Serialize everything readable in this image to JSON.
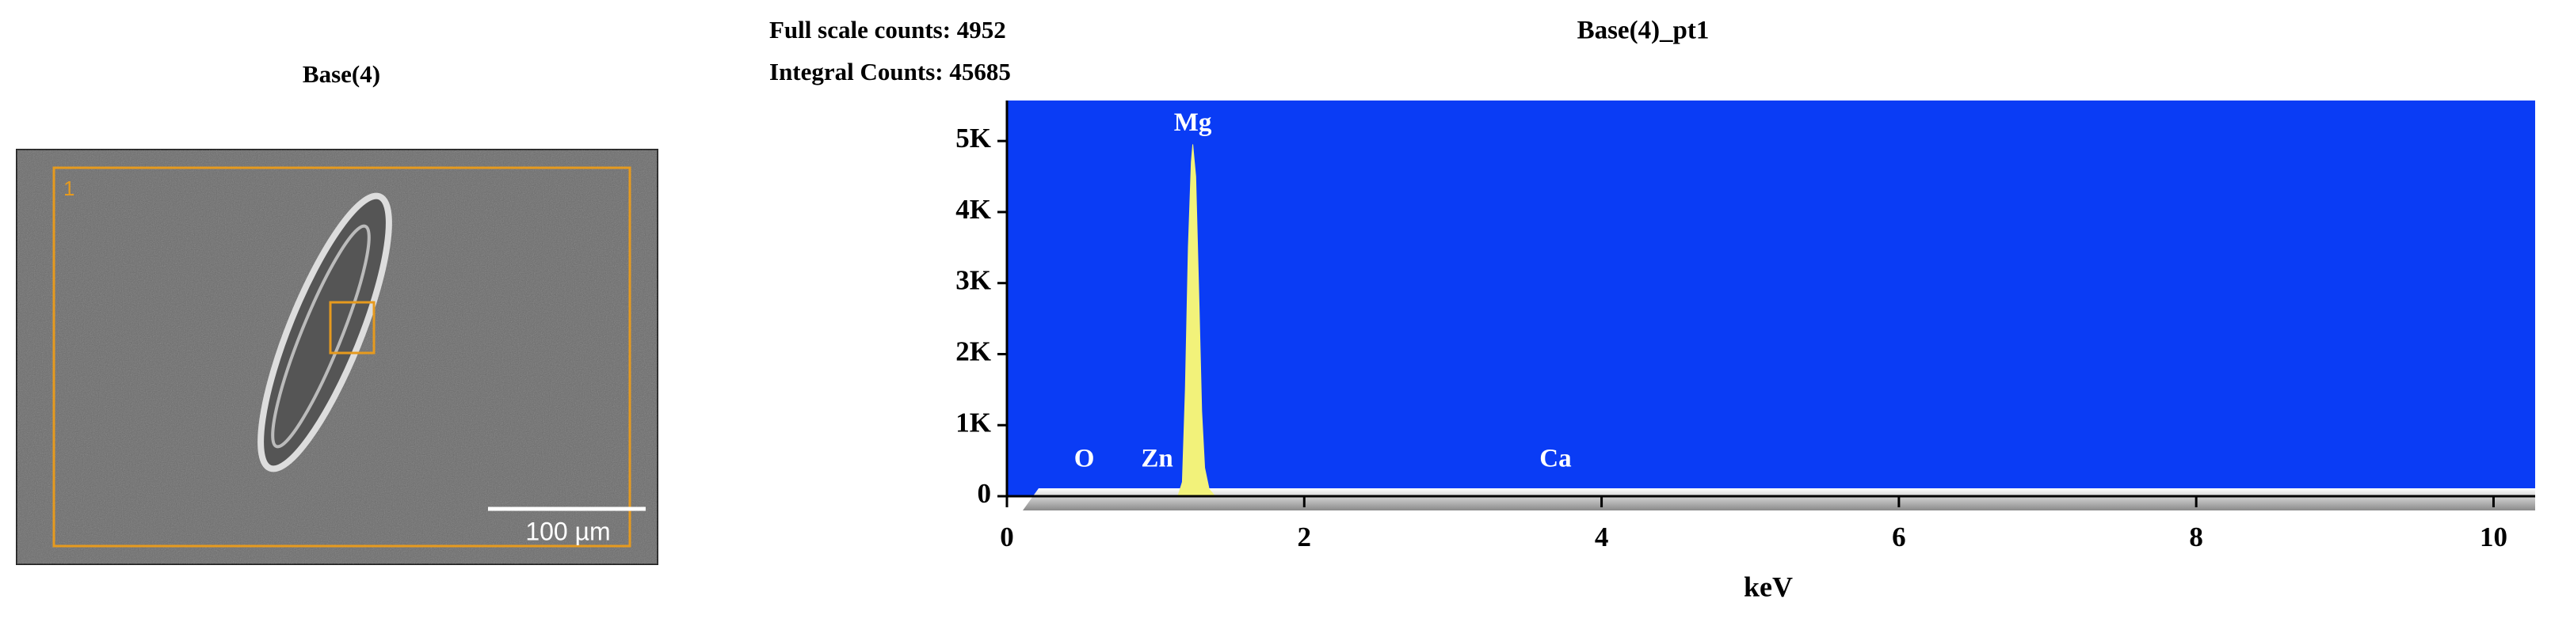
{
  "image_panel": {
    "title": "Base(4)",
    "region_label": "1",
    "scale_bar": "100 µm"
  },
  "chart_data": {
    "type": "area",
    "title": "Base(4)_pt1",
    "info": [
      "Full scale counts: 4952",
      "Integral Counts: 45685"
    ],
    "x_label": "keV",
    "x": [
      1.15,
      1.18,
      1.2,
      1.22,
      1.24,
      1.25,
      1.27,
      1.29,
      1.31,
      1.33,
      1.36,
      1.4
    ],
    "values": [
      0,
      200,
      1500,
      3500,
      4700,
      4952,
      4500,
      2900,
      1200,
      400,
      100,
      0
    ],
    "color": "#f2f27a",
    "background": "#0a3cf5",
    "xlim": [
      0,
      10.28
    ],
    "ylim": [
      0,
      5570
    ],
    "xticks": [
      0,
      2,
      4,
      6,
      8,
      10
    ],
    "yticks": [
      0,
      {
        "value": 1000,
        "label": "1K"
      },
      {
        "value": 2000,
        "label": "2K"
      },
      {
        "value": 3000,
        "label": "3K"
      },
      {
        "value": 4000,
        "label": "4K"
      },
      {
        "value": 5000,
        "label": "5K"
      }
    ],
    "peak_labels": [
      {
        "label": "O",
        "x": 0.52
      },
      {
        "label": "Zn",
        "x": 1.01
      },
      {
        "label": "Mg",
        "x": 1.25
      },
      {
        "label": "Ca",
        "x": 3.69
      }
    ]
  }
}
